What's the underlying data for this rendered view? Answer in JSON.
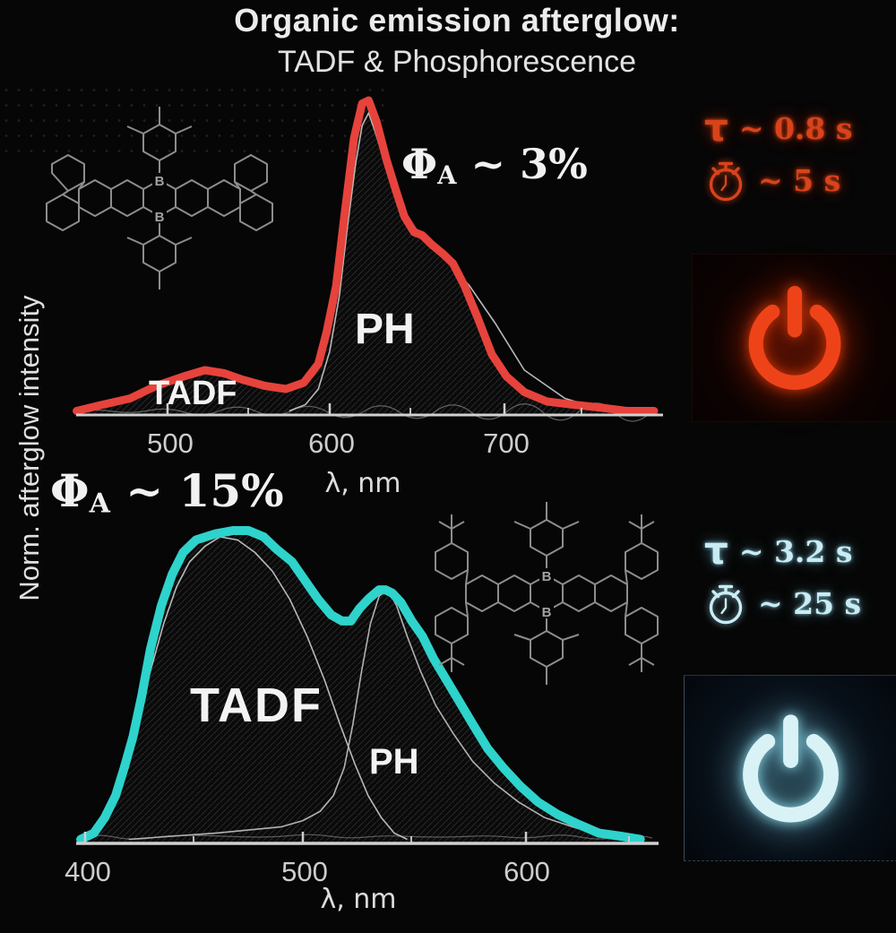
{
  "title": {
    "line1": "Organic emission afterglow:",
    "line2": "TADF & Phosphorescence"
  },
  "y_axis_label": "Norm. afterglow intensity",
  "molecules": {
    "boron_label": "B"
  },
  "top_panel": {
    "quantum_yield": {
      "symbol": "Φ",
      "subscript": "A",
      "value": "~ 3%"
    },
    "curve_labels": {
      "tadf": "TADF",
      "ph": "PH"
    },
    "x_ticks": [
      "500",
      "600",
      "700"
    ],
    "x_axis_label": "λ, nm",
    "lifetimes": {
      "tau_symbol": "τ",
      "tau_value": "~ 0.8 s",
      "afterglow_value": "~ 5 s"
    },
    "accent_color": "#e6433c"
  },
  "bottom_panel": {
    "quantum_yield": {
      "symbol": "Φ",
      "subscript": "A",
      "value": "~ 15%"
    },
    "curve_labels": {
      "tadf": "TADF",
      "ph": "PH"
    },
    "x_ticks": [
      "400",
      "500",
      "600"
    ],
    "x_axis_label": "λ, nm",
    "lifetimes": {
      "tau_symbol": "τ",
      "tau_value": "~ 3.2 s",
      "afterglow_value": "~ 25 s"
    },
    "accent_color": "#2ed3cc"
  },
  "chart_data": [
    {
      "type": "area",
      "title": "Afterglow spectrum, phosphorescence-dominated (ΦA ~ 3%)",
      "xlabel": "λ, nm",
      "ylabel": "Norm. afterglow intensity",
      "xlim": [
        440,
        805
      ],
      "ylim": [
        0,
        1.05
      ],
      "grid": false,
      "annotations": [
        "TADF",
        "PH",
        "ΦA ~ 3%",
        "τ ~ 0.8 s",
        "afterglow ~ 5 s"
      ],
      "series": [
        {
          "name": "total",
          "x": [
            444,
            460,
            477,
            493,
            510,
            523,
            535,
            546,
            560,
            573,
            584,
            593,
            598,
            604,
            609,
            615,
            620,
            624,
            629,
            635,
            641,
            646,
            652,
            657,
            663,
            670,
            676,
            683,
            691,
            700,
            709,
            720,
            734,
            750,
            768,
            783,
            800
          ],
          "y": [
            0.01,
            0.03,
            0.05,
            0.09,
            0.12,
            0.14,
            0.13,
            0.11,
            0.09,
            0.08,
            0.1,
            0.16,
            0.26,
            0.41,
            0.63,
            0.88,
            0.99,
            1.0,
            0.93,
            0.81,
            0.71,
            0.63,
            0.58,
            0.57,
            0.54,
            0.51,
            0.48,
            0.41,
            0.31,
            0.19,
            0.12,
            0.07,
            0.04,
            0.03,
            0.02,
            0.01,
            0.01
          ]
        },
        {
          "name": "ph_component",
          "x": [
            575,
            585,
            593,
            600,
            606,
            611,
            616,
            620,
            624,
            628,
            634,
            641,
            650,
            660,
            672,
            686,
            702,
            720,
            745,
            770
          ],
          "y": [
            0.01,
            0.03,
            0.08,
            0.2,
            0.38,
            0.6,
            0.8,
            0.92,
            0.96,
            0.9,
            0.8,
            0.7,
            0.61,
            0.55,
            0.49,
            0.41,
            0.29,
            0.14,
            0.05,
            0.01
          ]
        }
      ]
    },
    {
      "type": "area",
      "title": "Afterglow spectrum, TADF-dominated (ΦA ~ 15%)",
      "xlabel": "λ, nm",
      "ylabel": "Norm. afterglow intensity",
      "xlim": [
        395,
        660
      ],
      "ylim": [
        0,
        1.05
      ],
      "grid": false,
      "annotations": [
        "TADF",
        "PH",
        "ΦA ~ 15%",
        "τ ~ 3.2 s",
        "afterglow ~ 25 s"
      ],
      "series": [
        {
          "name": "total",
          "x": [
            398,
            404,
            409,
            414,
            418,
            422,
            426,
            430,
            435,
            440,
            445,
            451,
            460,
            468,
            475,
            482,
            488,
            495,
            501,
            507,
            513,
            518,
            522,
            526,
            530,
            535,
            538,
            541,
            545,
            550,
            555,
            560,
            566,
            572,
            578,
            585,
            592,
            600,
            608,
            617,
            626,
            636,
            646,
            655
          ],
          "y": [
            0.01,
            0.03,
            0.08,
            0.15,
            0.24,
            0.34,
            0.47,
            0.62,
            0.76,
            0.86,
            0.93,
            0.97,
            0.99,
            1.0,
            1.0,
            0.98,
            0.94,
            0.9,
            0.84,
            0.78,
            0.73,
            0.71,
            0.71,
            0.75,
            0.78,
            0.81,
            0.81,
            0.8,
            0.77,
            0.71,
            0.66,
            0.59,
            0.52,
            0.45,
            0.38,
            0.3,
            0.24,
            0.18,
            0.13,
            0.09,
            0.06,
            0.03,
            0.02,
            0.01
          ]
        },
        {
          "name": "tadf_component",
          "x": [
            400,
            406,
            412,
            418,
            424,
            430,
            436,
            442,
            448,
            455,
            462,
            470,
            478,
            486,
            494,
            502,
            510,
            517,
            524,
            530,
            536,
            542,
            548
          ],
          "y": [
            0.01,
            0.04,
            0.1,
            0.22,
            0.38,
            0.55,
            0.7,
            0.82,
            0.9,
            0.95,
            0.98,
            0.97,
            0.93,
            0.87,
            0.78,
            0.66,
            0.52,
            0.38,
            0.25,
            0.15,
            0.08,
            0.03,
            0.01
          ]
        },
        {
          "name": "ph_component",
          "x": [
            420,
            440,
            460,
            475,
            490,
            500,
            508,
            514,
            519,
            523,
            527,
            531,
            535,
            539,
            543,
            548,
            554,
            561,
            569,
            578,
            588,
            599,
            611,
            624,
            638
          ],
          "y": [
            0.01,
            0.02,
            0.03,
            0.04,
            0.05,
            0.07,
            0.1,
            0.15,
            0.24,
            0.38,
            0.55,
            0.7,
            0.79,
            0.81,
            0.76,
            0.66,
            0.55,
            0.44,
            0.35,
            0.26,
            0.19,
            0.13,
            0.08,
            0.05,
            0.02
          ]
        }
      ]
    }
  ]
}
